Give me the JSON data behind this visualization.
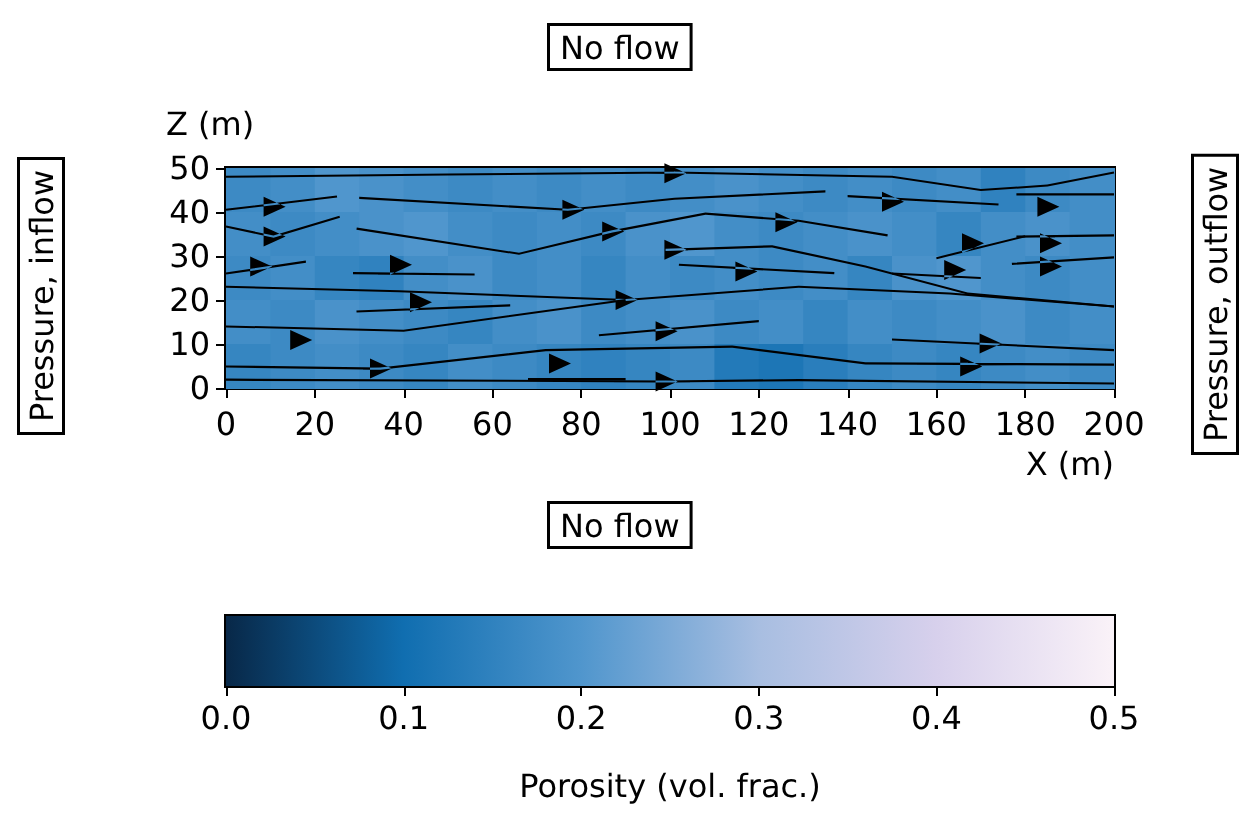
{
  "chart_data": {
    "type": "heatmap",
    "xlabel": "X (m)",
    "ylabel": "Z (m)",
    "clabel": "Porosity (vol. frac.)",
    "annotations": [
      "No flow",
      "No flow",
      "Pressure, inflow",
      "Pressure, outflow"
    ],
    "xlim": [
      0,
      200
    ],
    "xticks": [
      0,
      20,
      40,
      60,
      80,
      100,
      120,
      140,
      160,
      180,
      200
    ],
    "ylim": [
      0,
      50
    ],
    "yticks": [
      0,
      10,
      20,
      30,
      40,
      50
    ],
    "clim": [
      0,
      0.5
    ],
    "cticks": [
      {
        "value": 0,
        "label": "0.0"
      },
      0.1,
      0.2,
      0.3,
      0.4,
      0.5
    ],
    "cells": [
      [
        0.17,
        0.18,
        0.2,
        0.19,
        0.18,
        0.17,
        0.18,
        0.17,
        0.18,
        0.17,
        0.18,
        0.19,
        0.18,
        0.17,
        0.18,
        0.17,
        0.18,
        0.15,
        0.17,
        0.18
      ],
      [
        0.18,
        0.17,
        0.18,
        0.19,
        0.2,
        0.18,
        0.17,
        0.18,
        0.17,
        0.19,
        0.2,
        0.18,
        0.17,
        0.18,
        0.19,
        0.18,
        0.16,
        0.18,
        0.19,
        0.18
      ],
      [
        0.17,
        0.18,
        0.16,
        0.15,
        0.18,
        0.19,
        0.17,
        0.18,
        0.16,
        0.18,
        0.17,
        0.18,
        0.17,
        0.18,
        0.16,
        0.19,
        0.2,
        0.18,
        0.17,
        0.18
      ],
      [
        0.18,
        0.17,
        0.19,
        0.18,
        0.17,
        0.16,
        0.18,
        0.19,
        0.17,
        0.18,
        0.19,
        0.17,
        0.18,
        0.16,
        0.18,
        0.17,
        0.18,
        0.19,
        0.17,
        0.18
      ],
      [
        0.16,
        0.17,
        0.18,
        0.17,
        0.16,
        0.18,
        0.17,
        0.16,
        0.15,
        0.16,
        0.17,
        0.13,
        0.12,
        0.14,
        0.16,
        0.17,
        0.16,
        0.17,
        0.18,
        0.17
      ]
    ]
  }
}
